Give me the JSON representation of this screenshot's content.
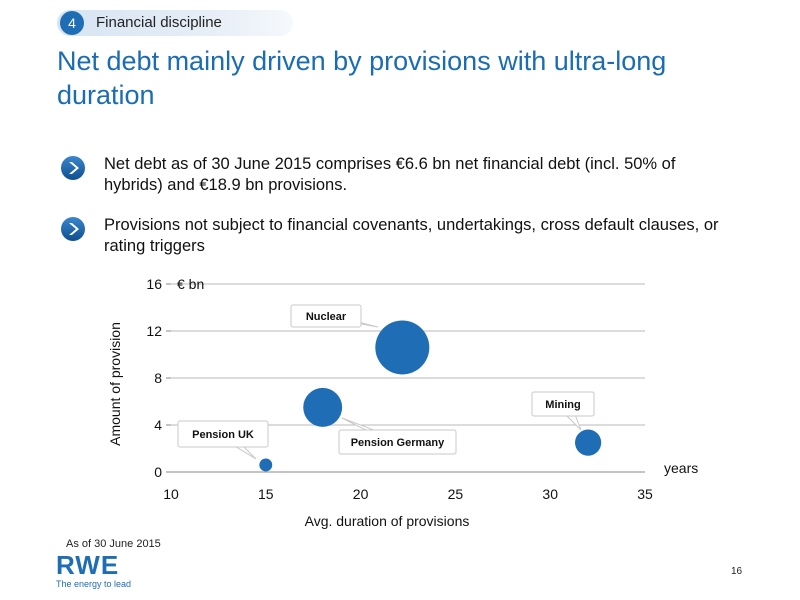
{
  "section": {
    "number": "4",
    "label": "Financial discipline"
  },
  "headline": "Net debt mainly driven by provisions with ultra-long duration",
  "bullets": [
    "Net debt as of 30 June 2015 comprises €6.6 bn net financial debt (incl. 50% of hybrids) and €18.9 bn provisions.",
    "Provisions not subject to financial covenants, undertakings, cross default clauses, or rating triggers"
  ],
  "chart_data": {
    "type": "scatter",
    "title": "",
    "unit_label": "€ bn",
    "xlabel": "Avg. duration of provisions",
    "ylabel": "Amount of provision",
    "x_unit_label": "years",
    "xlim": [
      10,
      35
    ],
    "ylim": [
      0,
      16
    ],
    "x_ticks": [
      10,
      15,
      20,
      25,
      30,
      35
    ],
    "y_ticks": [
      0,
      4,
      8,
      12,
      16
    ],
    "grid": "horizontal",
    "bubble_color": "#1f6db5",
    "points": [
      {
        "label": "Nuclear",
        "x": 22.2,
        "y": 10.6,
        "size": 10.6
      },
      {
        "label": "Pension Germany",
        "x": 18.0,
        "y": 5.5,
        "size": 5.5
      },
      {
        "label": "Mining",
        "x": 32.0,
        "y": 2.5,
        "size": 2.5
      },
      {
        "label": "Pension UK",
        "x": 15.0,
        "y": 0.6,
        "size": 0.6
      }
    ]
  },
  "footnote": "As of 30 June 2015",
  "logo": {
    "name": "RWE",
    "tagline": "The energy to lead"
  },
  "page_number": "16",
  "colors": {
    "accent": "#1a6cb4",
    "bubble": "#1f6db5"
  }
}
